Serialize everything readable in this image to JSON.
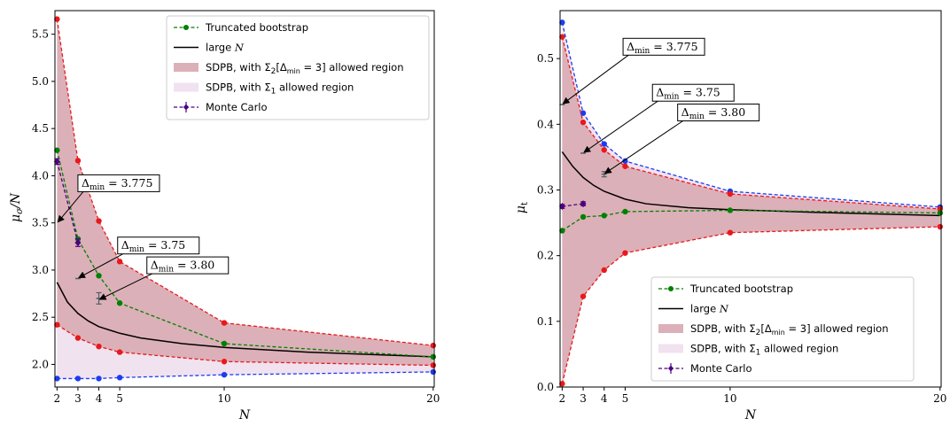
{
  "chart_data": [
    {
      "type": "line",
      "xlabel": "N",
      "ylabel": "μσ/N",
      "xlim": [
        1.9,
        20.05
      ],
      "ylim": [
        1.76,
        5.75
      ],
      "xticks": [
        2,
        3,
        4,
        5,
        10,
        20
      ],
      "yticks": [
        2.0,
        2.5,
        3.0,
        3.5,
        4.0,
        4.5,
        5.0,
        5.5
      ],
      "grid": false,
      "legend_position": "top-right",
      "series": [
        {
          "name": "Truncated bootstrap",
          "color": "#008000",
          "style": "dashed-markers",
          "x": [
            2,
            3,
            4,
            5,
            10,
            20
          ],
          "y": [
            4.27,
            3.33,
            2.94,
            2.65,
            2.22,
            2.08
          ]
        },
        {
          "name": "large N",
          "color": "#000000",
          "style": "solid",
          "x": [
            2,
            2.5,
            3,
            3.5,
            4,
            5,
            6,
            8,
            10,
            14,
            20
          ],
          "y": [
            2.87,
            2.66,
            2.54,
            2.46,
            2.4,
            2.33,
            2.28,
            2.22,
            2.18,
            2.13,
            2.08
          ]
        },
        {
          "name": "SDPB, with Σ2[Δmin = 3] allowed region",
          "color": "#dcb0b8",
          "kind": "band",
          "x": [
            2,
            3,
            4,
            5,
            10,
            20
          ],
          "upper": [
            5.66,
            4.16,
            3.52,
            3.09,
            2.44,
            2.2
          ],
          "lower": [
            2.42,
            2.28,
            2.19,
            2.13,
            2.03,
            1.99
          ]
        },
        {
          "name": "SDPB, with Σ1 allowed region",
          "color": "#f1e2f0",
          "kind": "band",
          "x": [
            2,
            3,
            4,
            5,
            10,
            20
          ],
          "upper": [
            2.42,
            2.28,
            2.19,
            2.13,
            2.03,
            1.99
          ],
          "lower": [
            1.85,
            1.85,
            1.85,
            1.86,
            1.89,
            1.92
          ]
        },
        {
          "name": "Monte Carlo",
          "color": "#4b0082",
          "kind": "errorbar",
          "x": [
            2,
            3
          ],
          "y": [
            4.15,
            3.29
          ],
          "err": [
            0.03,
            0.04
          ]
        }
      ],
      "bound_markers": {
        "red_upper": [
          5.66,
          4.16,
          3.52,
          3.09,
          2.44,
          2.2
        ],
        "red_lower": [
          2.42,
          2.28,
          2.19,
          2.13,
          2.03,
          1.99
        ],
        "blue_lower": [
          1.85,
          1.85,
          1.85,
          1.86,
          1.89,
          1.92
        ]
      },
      "grey_points": [
        {
          "x": 3,
          "y": 2.91,
          "err": 0.0
        },
        {
          "x": 4,
          "y": 2.7,
          "err": 0.06
        }
      ],
      "annotations": [
        {
          "text": "Δmin = 3.775",
          "target_x": 2,
          "target_y": 3.5,
          "label_x": 3.0,
          "label_y": 3.92
        },
        {
          "text": "Δmin = 3.75",
          "target_x": 3,
          "target_y": 2.91,
          "label_x": 4.9,
          "label_y": 3.26
        },
        {
          "text": "Δmin = 3.80",
          "target_x": 4,
          "target_y": 2.68,
          "label_x": 6.3,
          "label_y": 3.05
        }
      ]
    },
    {
      "type": "line",
      "xlabel": "N",
      "ylabel": "μt",
      "xlim": [
        1.9,
        20.05
      ],
      "ylim": [
        0.0,
        0.573
      ],
      "xticks": [
        2,
        3,
        4,
        5,
        10,
        20
      ],
      "yticks": [
        0.0,
        0.1,
        0.2,
        0.3,
        0.4,
        0.5
      ],
      "grid": false,
      "legend_position": "bottom-right",
      "series": [
        {
          "name": "Truncated bootstrap",
          "color": "#008000",
          "style": "dashed-markers",
          "x": [
            2,
            3,
            4,
            5,
            10,
            20
          ],
          "y": [
            0.238,
            0.259,
            0.261,
            0.267,
            0.269,
            0.265
          ]
        },
        {
          "name": "large N",
          "color": "#000000",
          "style": "solid",
          "x": [
            2,
            2.5,
            3,
            3.5,
            4,
            5,
            6,
            8,
            10,
            14,
            20
          ],
          "y": [
            0.358,
            0.336,
            0.319,
            0.307,
            0.298,
            0.286,
            0.279,
            0.273,
            0.27,
            0.266,
            0.261
          ]
        },
        {
          "name": "SDPB, with Σ2[Δmin = 3] allowed region",
          "color": "#dcb0b8",
          "kind": "band",
          "x": [
            2,
            3,
            4,
            5,
            10,
            20
          ],
          "upper": [
            0.533,
            0.403,
            0.361,
            0.336,
            0.294,
            0.271
          ],
          "lower": [
            0.005,
            0.138,
            0.178,
            0.204,
            0.235,
            0.244
          ]
        },
        {
          "name": "SDPB, with Σ1 allowed region",
          "color": "#f1e2f0",
          "kind": "band",
          "x": [
            2,
            3,
            4,
            5,
            10,
            20
          ],
          "upper": [
            0.555,
            0.417,
            0.37,
            0.344,
            0.298,
            0.274
          ],
          "lower": [
            0.533,
            0.403,
            0.361,
            0.336,
            0.294,
            0.271
          ]
        },
        {
          "name": "Monte Carlo",
          "color": "#4b0082",
          "kind": "errorbar",
          "x": [
            2,
            3
          ],
          "y": [
            0.275,
            0.279
          ],
          "err": [
            0.003,
            0.003
          ]
        }
      ],
      "bound_markers": {
        "red_upper": [
          0.533,
          0.403,
          0.361,
          0.336,
          0.294,
          0.271
        ],
        "red_lower": [
          0.005,
          0.138,
          0.178,
          0.204,
          0.235,
          0.244
        ],
        "blue_upper": [
          0.555,
          0.417,
          0.37,
          0.344,
          0.298,
          0.274
        ]
      },
      "grey_points": [
        {
          "x": 2,
          "y": 0.43,
          "err": 0.0
        },
        {
          "x": 3,
          "y": 0.356,
          "err": 0.0
        },
        {
          "x": 4,
          "y": 0.324,
          "err": 0.004
        }
      ],
      "annotations": [
        {
          "text": "Δmin = 3.775",
          "target_x": 2,
          "target_y": 0.43,
          "label_x": 4.9,
          "label_y": 0.518
        },
        {
          "text": "Δmin = 3.75",
          "target_x": 3,
          "target_y": 0.356,
          "label_x": 6.3,
          "label_y": 0.448
        },
        {
          "text": "Δmin = 3.80",
          "target_x": 4,
          "target_y": 0.324,
          "label_x": 7.5,
          "label_y": 0.418
        }
      ]
    }
  ],
  "legend_items": [
    "Truncated bootstrap",
    "large N",
    "SDPB, with Σ2[Δmin = 3] allowed region",
    "SDPB, with Σ1 allowed region",
    "Monte Carlo"
  ],
  "colors": {
    "red": "#e8191c",
    "blue": "#1c3cf0",
    "green": "#008000",
    "grey": "#4d6066",
    "purple": "#4b0082"
  }
}
